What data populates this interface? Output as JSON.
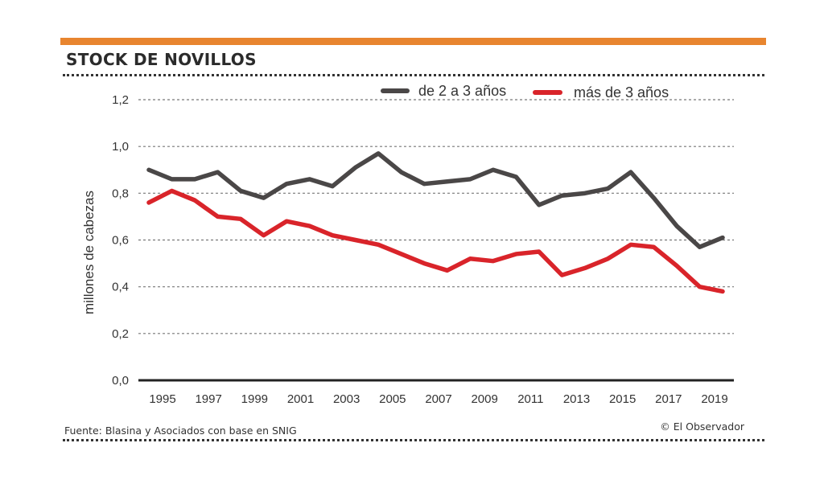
{
  "header": {
    "title": "STOCK DE NOVILLOS"
  },
  "footer": {
    "source": "Fuente: Blasina y Asociados con base en SNIG",
    "credit": "© El Observador"
  },
  "colors": {
    "accent_bar": "#e8852f",
    "series_gray": "#4a4747",
    "series_red": "#d9242a"
  },
  "chart_data": {
    "type": "line",
    "title": "STOCK DE NOVILLOS",
    "xlabel": "",
    "ylabel": "millones de cabezas",
    "ylim": [
      0,
      1.2
    ],
    "yticks": [
      0.0,
      0.2,
      0.4,
      0.6,
      0.8,
      1.0,
      1.2
    ],
    "ytick_labels": [
      "0,0",
      "0,2",
      "0,4",
      "0,6",
      "0,8",
      "1,0",
      "1,2"
    ],
    "xlim": [
      1995,
      2020
    ],
    "xtick_labels": [
      "1995",
      "1997",
      "1999",
      "2001",
      "2003",
      "2005",
      "2007",
      "2009",
      "2011",
      "2013",
      "2015",
      "2017",
      "2019"
    ],
    "x": [
      1995,
      1996,
      1997,
      1998,
      1999,
      2000,
      2001,
      2002,
      2003,
      2004,
      2005,
      2006,
      2007,
      2008,
      2009,
      2010,
      2011,
      2012,
      2013,
      2014,
      2015,
      2016,
      2017,
      2018,
      2019,
      2020
    ],
    "grid": "horizontal-dotted",
    "legend_position": "top",
    "series": [
      {
        "name": "de 2 a 3 años",
        "color": "#4a4747",
        "values": [
          0.9,
          0.86,
          0.86,
          0.89,
          0.81,
          0.78,
          0.84,
          0.86,
          0.83,
          0.91,
          0.97,
          0.89,
          0.84,
          0.85,
          0.86,
          0.9,
          0.87,
          0.75,
          0.79,
          0.8,
          0.82,
          0.89,
          0.78,
          0.66,
          0.57,
          0.61
        ]
      },
      {
        "name": "más de 3 años",
        "color": "#d9242a",
        "values": [
          0.76,
          0.81,
          0.77,
          0.7,
          0.69,
          0.62,
          0.68,
          0.66,
          0.62,
          0.6,
          0.58,
          0.54,
          0.5,
          0.47,
          0.52,
          0.51,
          0.54,
          0.55,
          0.45,
          0.48,
          0.52,
          0.58,
          0.57,
          0.49,
          0.4,
          0.38
        ]
      }
    ]
  }
}
